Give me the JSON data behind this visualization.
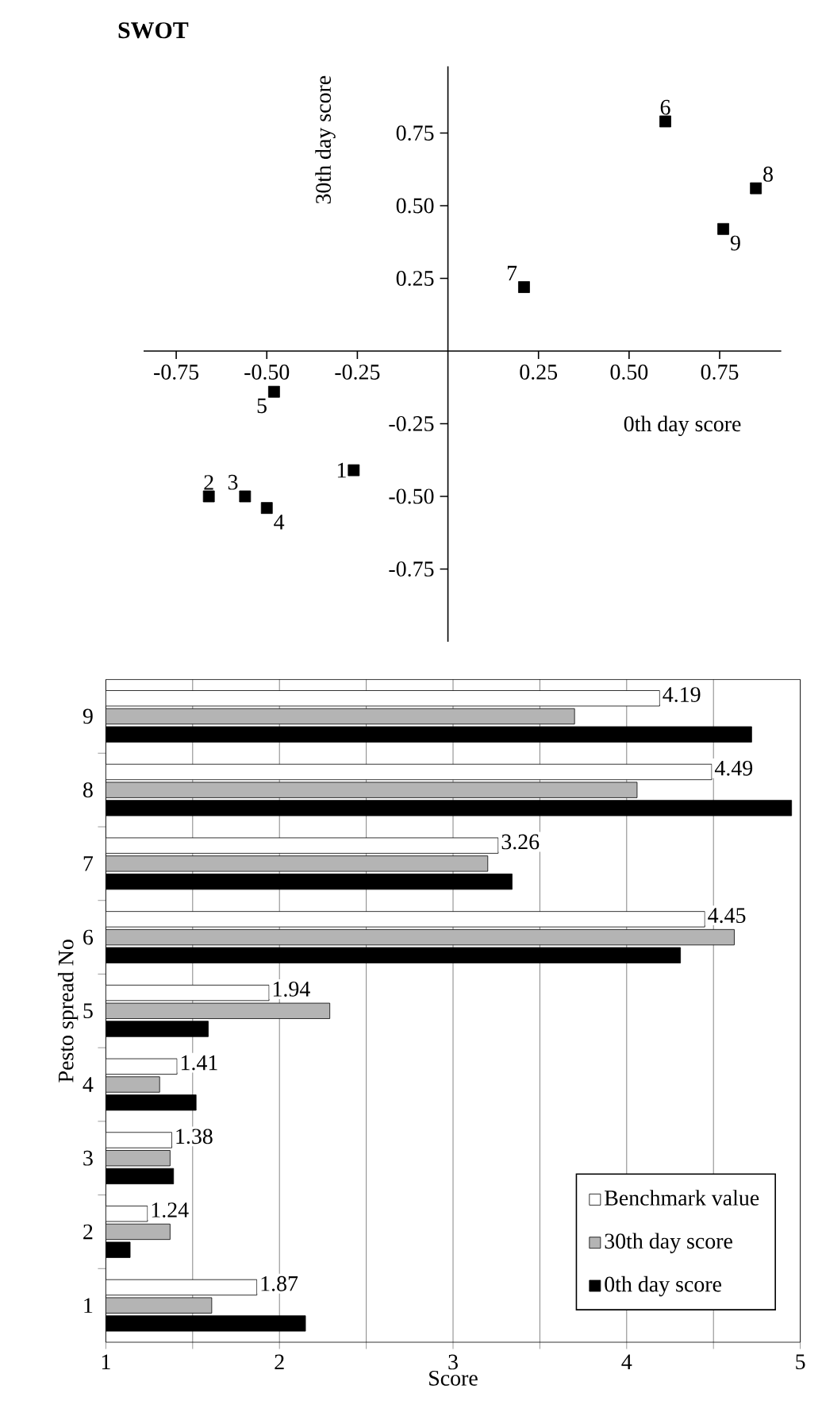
{
  "chart_data": [
    {
      "type": "scatter",
      "title": "SWOT",
      "xlabel": "0th day score",
      "ylabel": "30th day score",
      "color": "#000000",
      "marker": "square",
      "x": [
        -0.26,
        -0.66,
        -0.56,
        -0.5,
        -0.48,
        0.6,
        0.21,
        0.85,
        0.76
      ],
      "values": [
        -0.41,
        -0.5,
        -0.5,
        -0.54,
        -0.14,
        0.79,
        0.22,
        0.56,
        0.42
      ],
      "xlim": [
        -0.84,
        0.92
      ],
      "ylim": [
        -1.0,
        0.98
      ],
      "xticks": [
        {
          "value": -0.75,
          "label": "-0.75"
        },
        {
          "value": -0.5,
          "label": "-0.50"
        },
        {
          "value": -0.25,
          "label": "-0.25"
        },
        0.25,
        {
          "value": 0.5,
          "label": "0.50"
        },
        0.75
      ],
      "yticks": [
        0.75,
        {
          "value": 0.5,
          "label": "0.50"
        },
        0.25,
        {
          "value": -0.25,
          "label": "-0.25"
        },
        {
          "value": -0.5,
          "label": "-0.50"
        },
        {
          "value": -0.75,
          "label": "-0.75"
        }
      ],
      "annotations": [
        {
          "text": "1",
          "x": -0.26,
          "y": -0.41
        },
        {
          "text": "2",
          "x": -0.66,
          "y": -0.5
        },
        {
          "text": "3",
          "x": -0.56,
          "y": -0.5
        },
        {
          "text": "4",
          "x": -0.5,
          "y": -0.54
        },
        {
          "text": "5",
          "x": -0.48,
          "y": -0.14
        },
        {
          "text": "6",
          "x": 0.6,
          "y": 0.79
        },
        {
          "text": "7",
          "x": 0.21,
          "y": 0.22
        },
        {
          "text": "8",
          "x": 0.85,
          "y": 0.56
        },
        {
          "text": "9",
          "x": 0.76,
          "y": 0.42
        }
      ]
    },
    {
      "type": "bar",
      "orientation": "horizontal",
      "xlabel": "Score",
      "ylabel": "Pesto spread No",
      "categories": [
        "9",
        "8",
        "7",
        "6",
        "5",
        "4",
        "3",
        "2",
        "1"
      ],
      "series": [
        {
          "name": "Benchmark value",
          "color": "#ffffff",
          "values": [
            4.19,
            4.49,
            3.26,
            4.45,
            1.94,
            1.41,
            1.38,
            1.24,
            1.87
          ],
          "value_labels": [
            "4.19",
            "4.49",
            "3.26",
            "4.45",
            "1.94",
            "1.41",
            "1.38",
            "1.24",
            "1.87"
          ]
        },
        {
          "name": "30th day score",
          "color": "#b4b4b4",
          "values": [
            3.7,
            4.06,
            3.2,
            4.62,
            2.29,
            1.31,
            1.37,
            1.37,
            1.61
          ]
        },
        {
          "name": "0th day score",
          "color": "#000000",
          "values": [
            4.72,
            4.95,
            3.34,
            4.31,
            1.59,
            1.52,
            1.39,
            1.14,
            2.15
          ]
        }
      ],
      "xlim": [
        1,
        5
      ],
      "xticks": [
        1,
        {
          "value": 1.5,
          "label": null
        },
        2,
        {
          "value": 2.5,
          "label": null
        },
        3,
        {
          "value": 3.5,
          "label": null
        },
        4,
        {
          "value": 4.5,
          "label": null
        },
        5
      ],
      "grid": "x",
      "legend": "bottom right"
    }
  ]
}
